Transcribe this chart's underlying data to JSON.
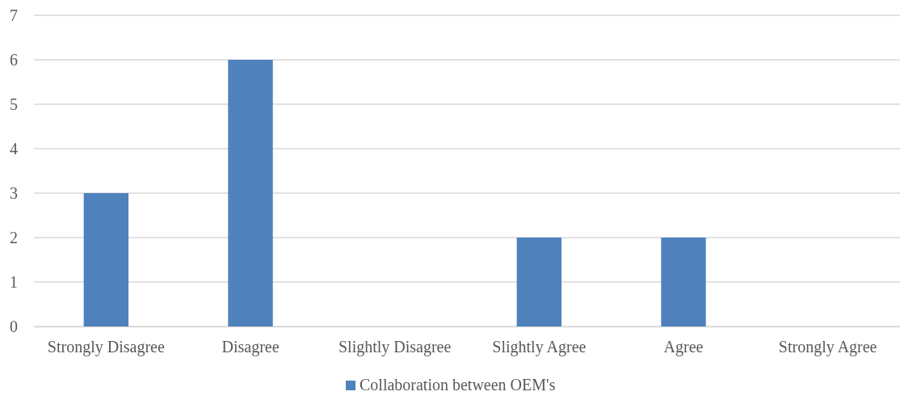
{
  "chart_data": {
    "type": "bar",
    "categories": [
      "Strongly Disagree",
      "Disagree",
      "Slightly Disagree",
      "Slightly Agree",
      "Agree",
      "Strongly Agree"
    ],
    "series": [
      {
        "name": "Collaboration between OEM's",
        "color": "#4f81bd",
        "values": [
          3,
          6,
          0,
          2,
          2,
          0
        ]
      }
    ],
    "ylim": [
      0,
      7
    ],
    "yticks": [
      0,
      1,
      2,
      3,
      4,
      5,
      6,
      7
    ],
    "grid": "y",
    "legend": "bottom"
  }
}
